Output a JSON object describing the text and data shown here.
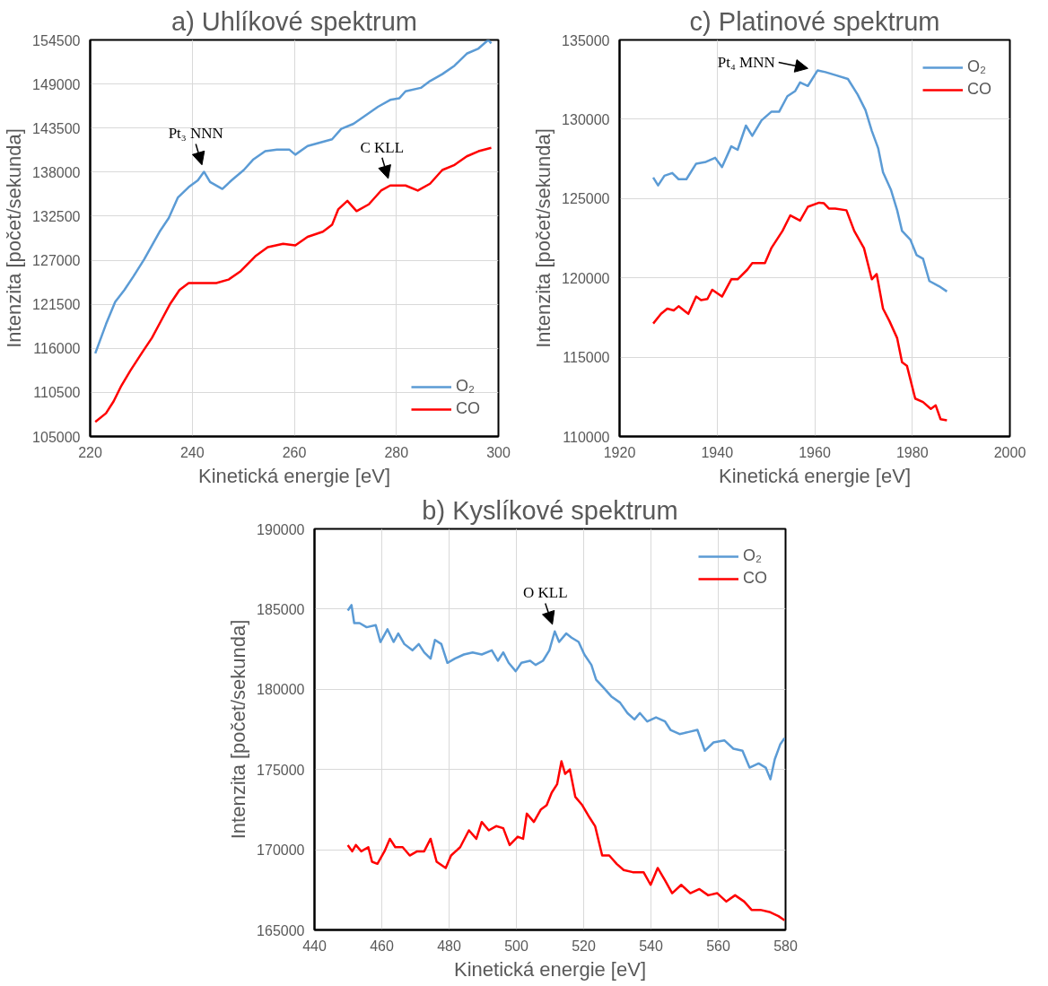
{
  "chart_data": [
    {
      "type": "line",
      "title": "a) Uhlíkové spektrum",
      "xlabel": "Kinetická energie [eV]",
      "ylabel": "Intenzita [počet/sekunda]",
      "xlim": [
        220,
        300
      ],
      "xticks": [
        220,
        240,
        260,
        280,
        300
      ],
      "ylim": [
        105000,
        154500
      ],
      "yticks": [
        105000,
        110500,
        116000,
        121500,
        127000,
        132500,
        138000,
        143500,
        149000,
        154500
      ],
      "grid": true,
      "legend": "bottom right",
      "annotations": [
        {
          "text": "Pt₃ NNN",
          "x": 242.3,
          "y": 138040
        },
        {
          "text": "C KLL",
          "x": 278.8,
          "y": 136330
        }
      ],
      "series": [
        {
          "name": "O₂",
          "color": "#5b9bd5",
          "x": [
            221.0,
            223.1,
            224.9,
            226.7,
            228.5,
            230.6,
            232.1,
            233.6,
            235.4,
            237.2,
            239.3,
            241.1,
            242.3,
            243.5,
            245.9,
            247.7,
            250.1,
            251.9,
            254.3,
            256.6,
            259.0,
            260.2,
            262.6,
            265.0,
            267.4,
            269.2,
            271.6,
            274.0,
            276.4,
            278.8,
            280.6,
            281.8,
            284.8,
            286.6,
            289.0,
            291.4,
            293.8,
            296.1,
            298.0,
            298.6
          ],
          "values": [
            115380,
            119020,
            121800,
            123290,
            125000,
            127140,
            128850,
            130560,
            132270,
            134840,
            136120,
            136970,
            138040,
            136760,
            135900,
            136970,
            138260,
            139540,
            140610,
            140820,
            140820,
            140180,
            141250,
            141680,
            142100,
            143390,
            144030,
            145100,
            146160,
            147020,
            147230,
            148090,
            148520,
            149370,
            150230,
            151290,
            152790,
            153430,
            154500,
            154070
          ]
        },
        {
          "name": "CO",
          "color": "#ff0000",
          "x": [
            221.0,
            223.1,
            224.6,
            226.1,
            227.9,
            230.3,
            232.1,
            233.9,
            235.7,
            237.5,
            239.3,
            241.7,
            244.7,
            247.1,
            249.5,
            252.5,
            254.8,
            257.8,
            260.2,
            262.6,
            265.6,
            267.4,
            268.6,
            270.4,
            272.2,
            274.6,
            277.0,
            278.8,
            281.8,
            284.2,
            286.6,
            289.0,
            291.4,
            293.8,
            296.1,
            298.6
          ],
          "values": [
            106830,
            107900,
            109400,
            111320,
            113250,
            115600,
            117310,
            119450,
            121580,
            123290,
            124150,
            124150,
            124150,
            124580,
            125640,
            127570,
            128640,
            129060,
            128850,
            129920,
            130560,
            131420,
            133340,
            134410,
            133130,
            133980,
            135690,
            136330,
            136330,
            135690,
            136550,
            138260,
            138900,
            139970,
            140610,
            141040
          ]
        }
      ]
    },
    {
      "type": "line",
      "title": "c) Platinové spektrum",
      "xlabel": "Kinetická energie [eV]",
      "ylabel": "Intenzita [počet/sekunda]",
      "xlim": [
        1920,
        2000
      ],
      "xticks": [
        1920,
        1940,
        1960,
        1980,
        2000
      ],
      "ylim": [
        110000,
        135000
      ],
      "yticks": [
        110000,
        115000,
        120000,
        125000,
        130000,
        135000
      ],
      "grid": true,
      "legend": "top right",
      "annotations": [
        {
          "text": "Pt₄ MNN",
          "x": 1960.6,
          "y": 133080
        }
      ],
      "series": [
        {
          "name": "O₂",
          "color": "#5b9bd5",
          "x": [
            1926.9,
            1927.9,
            1929.2,
            1930.8,
            1932.1,
            1933.7,
            1935.7,
            1937.7,
            1939.6,
            1941.0,
            1942.9,
            1944.2,
            1945.9,
            1947.2,
            1949.1,
            1951.1,
            1952.7,
            1954.4,
            1956.0,
            1957.0,
            1958.6,
            1960.6,
            1962.2,
            1964.5,
            1966.8,
            1968.8,
            1970.4,
            1971.7,
            1973.0,
            1974.0,
            1975.6,
            1976.9,
            1977.9,
            1979.6,
            1980.9,
            1982.2,
            1983.5,
            1985.5,
            1987.1
          ],
          "values": [
            126330,
            125830,
            126440,
            126610,
            126220,
            126220,
            127200,
            127310,
            127570,
            126980,
            128290,
            128070,
            129600,
            128950,
            129930,
            130470,
            130470,
            131450,
            131780,
            132320,
            132100,
            133080,
            132970,
            132760,
            132540,
            131560,
            130580,
            129270,
            128180,
            126660,
            125570,
            124260,
            122960,
            122410,
            121430,
            121210,
            119800,
            119470,
            119140
          ]
        },
        {
          "name": "CO",
          "color": "#ff0000",
          "x": [
            1926.9,
            1928.5,
            1929.8,
            1931.1,
            1932.1,
            1934.1,
            1935.7,
            1936.7,
            1938.0,
            1939.0,
            1941.0,
            1942.9,
            1944.2,
            1946.2,
            1947.2,
            1949.8,
            1951.1,
            1953.4,
            1955.0,
            1957.0,
            1958.6,
            1960.9,
            1961.9,
            1962.9,
            1964.2,
            1966.5,
            1968.1,
            1970.1,
            1971.7,
            1972.7,
            1974.0,
            1975.3,
            1976.9,
            1977.9,
            1978.9,
            1980.6,
            1982.2,
            1983.8,
            1984.8,
            1985.8,
            1987.1
          ],
          "values": [
            117120,
            117730,
            118060,
            117950,
            118210,
            117730,
            118820,
            118600,
            118670,
            119250,
            118820,
            119910,
            119910,
            120520,
            120930,
            120930,
            121870,
            122960,
            123940,
            123610,
            124480,
            124740,
            124700,
            124370,
            124370,
            124260,
            122960,
            121870,
            119910,
            120240,
            118060,
            117290,
            116200,
            114680,
            114460,
            112390,
            112170,
            111740,
            111960,
            111090,
            111020
          ]
        }
      ]
    },
    {
      "type": "line",
      "title": "b) Kyslíkové spektrum",
      "xlabel": "Kinetická energie [eV]",
      "ylabel": "Intenzita [počet/sekunda]",
      "xlim": [
        440,
        580
      ],
      "xticks": [
        440,
        460,
        480,
        500,
        520,
        540,
        560,
        580
      ],
      "ylim": [
        165000,
        190000
      ],
      "yticks": [
        165000,
        170000,
        175000,
        180000,
        185000,
        190000
      ],
      "grid": true,
      "legend": "top right",
      "annotations": [
        {
          "text": "O KLL",
          "x": 511.4,
          "y": 183610
        }
      ],
      "series": [
        {
          "name": "O₂",
          "color": "#5b9bd5",
          "x": [
            449.9,
            451.0,
            451.8,
            453.4,
            455.5,
            458.2,
            459.6,
            461.7,
            463.5,
            464.9,
            466.7,
            469.1,
            471.0,
            472.6,
            474.5,
            475.8,
            477.7,
            479.5,
            481.7,
            484.4,
            487.0,
            489.7,
            492.7,
            494.5,
            496.1,
            497.7,
            499.8,
            501.5,
            504.1,
            505.7,
            507.9,
            509.8,
            511.4,
            512.7,
            514.8,
            516.4,
            518.5,
            520.2,
            522.3,
            523.7,
            526.0,
            528.2,
            530.8,
            533.0,
            535.1,
            536.7,
            538.9,
            541.5,
            544.2,
            545.8,
            548.5,
            551.2,
            553.8,
            556.0,
            558.6,
            561.8,
            564.5,
            567.2,
            569.3,
            572.0,
            574.1,
            575.5,
            576.8,
            578.4,
            579.7
          ],
          "values": [
            184910,
            185250,
            184130,
            184130,
            183870,
            184000,
            182950,
            183740,
            182950,
            183480,
            182820,
            182430,
            182820,
            182300,
            181910,
            183080,
            182820,
            181650,
            181910,
            182170,
            182300,
            182170,
            182430,
            181780,
            182300,
            181650,
            181130,
            181650,
            181780,
            181520,
            181780,
            182430,
            183610,
            182950,
            183480,
            183220,
            182950,
            182170,
            181520,
            180600,
            180080,
            179560,
            179170,
            178520,
            178120,
            178520,
            177990,
            178250,
            177990,
            177470,
            177210,
            177340,
            177470,
            176170,
            176690,
            176820,
            176300,
            176170,
            175120,
            175380,
            175120,
            174390,
            175640,
            176560,
            176950
          ]
        },
        {
          "name": "CO",
          "color": "#ff0000",
          "x": [
            449.9,
            451.2,
            452.3,
            453.9,
            456.0,
            457.1,
            458.7,
            460.8,
            462.4,
            464.0,
            466.2,
            468.3,
            470.5,
            472.6,
            474.5,
            476.3,
            479.0,
            480.6,
            483.3,
            485.9,
            488.1,
            489.7,
            491.8,
            494.0,
            496.1,
            498.0,
            500.4,
            502.0,
            503.1,
            505.2,
            507.3,
            509.0,
            510.5,
            512.1,
            513.4,
            514.5,
            515.9,
            517.5,
            519.6,
            521.8,
            523.4,
            525.5,
            527.6,
            529.8,
            531.9,
            534.6,
            537.8,
            539.9,
            542.0,
            544.2,
            546.3,
            549.0,
            551.7,
            554.4,
            557.0,
            559.7,
            562.4,
            565.0,
            567.7,
            569.9,
            572.5,
            575.2,
            577.9,
            579.7
          ],
          "values": [
            170290,
            169900,
            170290,
            169900,
            170160,
            169250,
            169120,
            169900,
            170680,
            170160,
            170160,
            169640,
            169900,
            169900,
            170680,
            169250,
            168860,
            169640,
            170160,
            171210,
            170680,
            171730,
            171210,
            171470,
            171340,
            170290,
            170810,
            170680,
            172250,
            171730,
            172510,
            172770,
            173560,
            174080,
            175510,
            174730,
            175000,
            173300,
            172770,
            171990,
            171470,
            169640,
            169640,
            169120,
            168730,
            168600,
            168600,
            167810,
            168860,
            168080,
            167290,
            167810,
            167290,
            167550,
            167160,
            167290,
            166770,
            167160,
            166770,
            166250,
            166250,
            166120,
            165860,
            165600
          ]
        }
      ]
    }
  ]
}
